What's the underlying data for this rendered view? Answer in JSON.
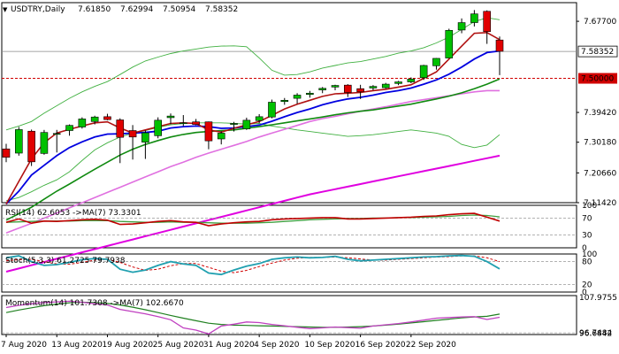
{
  "header": {
    "symbol_caret": "▼",
    "title": "USDTRY,Daily",
    "open": "7.61850",
    "high": "7.62994",
    "low": "7.50954",
    "close": "7.58352"
  },
  "chart_data": {
    "type": "candlestick",
    "x_tick_labels": [
      "7 Aug 2020",
      "13 Aug 2020",
      "19 Aug 2020",
      "25 Aug 2020",
      "31 Aug 2020",
      "4 Sep 2020",
      "10 Sep 2020",
      "16 Sep 2020",
      "22 Sep 2020"
    ],
    "price_panel": {
      "ylim": [
        7.1142,
        7.7349
      ],
      "y_tick_labels": [
        "7.67700",
        "7.58352",
        "7.50000",
        "7.39420",
        "7.30180",
        "7.20660",
        "7.11420"
      ],
      "current_price": 7.58352,
      "level_line": 7.5,
      "candles": [
        {
          "o": 7.281,
          "h": 7.297,
          "l": 7.24,
          "c": 7.255
        },
        {
          "o": 7.268,
          "h": 7.349,
          "l": 7.26,
          "c": 7.341
        },
        {
          "o": 7.336,
          "h": 7.341,
          "l": 7.228,
          "c": 7.241
        },
        {
          "o": 7.267,
          "h": 7.34,
          "l": 7.263,
          "c": 7.332
        },
        {
          "o": 7.327,
          "h": 7.34,
          "l": 7.27,
          "c": 7.329
        },
        {
          "o": 7.338,
          "h": 7.357,
          "l": 7.322,
          "c": 7.354
        },
        {
          "o": 7.349,
          "h": 7.379,
          "l": 7.344,
          "c": 7.374
        },
        {
          "o": 7.366,
          "h": 7.384,
          "l": 7.357,
          "c": 7.38
        },
        {
          "o": 7.381,
          "h": 7.39,
          "l": 7.37,
          "c": 7.372
        },
        {
          "o": 7.371,
          "h": 7.376,
          "l": 7.237,
          "c": 7.317
        },
        {
          "o": 7.338,
          "h": 7.355,
          "l": 7.248,
          "c": 7.318
        },
        {
          "o": 7.302,
          "h": 7.338,
          "l": 7.25,
          "c": 7.331
        },
        {
          "o": 7.322,
          "h": 7.379,
          "l": 7.314,
          "c": 7.37
        },
        {
          "o": 7.378,
          "h": 7.391,
          "l": 7.358,
          "c": 7.383
        },
        {
          "o": 7.36,
          "h": 7.386,
          "l": 7.352,
          "c": 7.362
        },
        {
          "o": 7.365,
          "h": 7.374,
          "l": 7.355,
          "c": 7.357
        },
        {
          "o": 7.365,
          "h": 7.366,
          "l": 7.28,
          "c": 7.306
        },
        {
          "o": 7.312,
          "h": 7.336,
          "l": 7.295,
          "c": 7.33
        },
        {
          "o": 7.357,
          "h": 7.365,
          "l": 7.335,
          "c": 7.36
        },
        {
          "o": 7.343,
          "h": 7.378,
          "l": 7.34,
          "c": 7.37
        },
        {
          "o": 7.369,
          "h": 7.389,
          "l": 7.361,
          "c": 7.381
        },
        {
          "o": 7.38,
          "h": 7.434,
          "l": 7.376,
          "c": 7.426
        },
        {
          "o": 7.428,
          "h": 7.439,
          "l": 7.418,
          "c": 7.432
        },
        {
          "o": 7.438,
          "h": 7.454,
          "l": 7.421,
          "c": 7.448
        },
        {
          "o": 7.45,
          "h": 7.461,
          "l": 7.44,
          "c": 7.454
        },
        {
          "o": 7.464,
          "h": 7.473,
          "l": 7.454,
          "c": 7.469
        },
        {
          "o": 7.473,
          "h": 7.48,
          "l": 7.463,
          "c": 7.478
        },
        {
          "o": 7.479,
          "h": 7.482,
          "l": 7.442,
          "c": 7.456
        },
        {
          "o": 7.468,
          "h": 7.48,
          "l": 7.436,
          "c": 7.458
        },
        {
          "o": 7.47,
          "h": 7.479,
          "l": 7.463,
          "c": 7.475
        },
        {
          "o": 7.471,
          "h": 7.486,
          "l": 7.468,
          "c": 7.482
        },
        {
          "o": 7.484,
          "h": 7.492,
          "l": 7.479,
          "c": 7.489
        },
        {
          "o": 7.489,
          "h": 7.503,
          "l": 7.485,
          "c": 7.498
        },
        {
          "o": 7.502,
          "h": 7.542,
          "l": 7.495,
          "c": 7.54
        },
        {
          "o": 7.539,
          "h": 7.563,
          "l": 7.527,
          "c": 7.562
        },
        {
          "o": 7.563,
          "h": 7.654,
          "l": 7.562,
          "c": 7.649
        },
        {
          "o": 7.65,
          "h": 7.686,
          "l": 7.64,
          "c": 7.673
        },
        {
          "o": 7.673,
          "h": 7.712,
          "l": 7.661,
          "c": 7.7
        },
        {
          "o": 7.708,
          "h": 7.711,
          "l": 7.607,
          "c": 7.645
        },
        {
          "o": 7.619,
          "h": 7.63,
          "l": 7.51,
          "c": 7.584
        }
      ],
      "lines": {
        "bb_upper": [
          7.34,
          7.352,
          7.366,
          7.392,
          7.415,
          7.438,
          7.458,
          7.475,
          7.49,
          7.512,
          7.535,
          7.554,
          7.566,
          7.577,
          7.585,
          7.591,
          7.597,
          7.6,
          7.601,
          7.598,
          7.563,
          7.525,
          7.51,
          7.512,
          7.52,
          7.532,
          7.54,
          7.548,
          7.552,
          7.56,
          7.568,
          7.578,
          7.585,
          7.595,
          7.61,
          7.628,
          7.652,
          7.676,
          7.688,
          7.682
        ],
        "bb_lower": [
          7.12,
          7.13,
          7.148,
          7.168,
          7.185,
          7.21,
          7.245,
          7.278,
          7.3,
          7.318,
          7.33,
          7.338,
          7.348,
          7.356,
          7.36,
          7.362,
          7.362,
          7.362,
          7.36,
          7.358,
          7.36,
          7.352,
          7.346,
          7.34,
          7.335,
          7.33,
          7.325,
          7.32,
          7.322,
          7.325,
          7.33,
          7.335,
          7.34,
          7.335,
          7.33,
          7.32,
          7.295,
          7.285,
          7.293,
          7.325
        ],
        "ema_fast_red": [
          7.11,
          7.18,
          7.25,
          7.3,
          7.33,
          7.342,
          7.352,
          7.362,
          7.365,
          7.346,
          7.33,
          7.34,
          7.35,
          7.36,
          7.362,
          7.36,
          7.34,
          7.333,
          7.345,
          7.356,
          7.366,
          7.385,
          7.405,
          7.42,
          7.432,
          7.444,
          7.452,
          7.454,
          7.456,
          7.462,
          7.466,
          7.473,
          7.48,
          7.5,
          7.52,
          7.56,
          7.6,
          7.64,
          7.642,
          7.62
        ],
        "ema_mid_blue": [
          7.11,
          7.15,
          7.2,
          7.23,
          7.26,
          7.285,
          7.303,
          7.318,
          7.327,
          7.328,
          7.33,
          7.332,
          7.336,
          7.346,
          7.35,
          7.352,
          7.35,
          7.345,
          7.346,
          7.35,
          7.355,
          7.367,
          7.381,
          7.394,
          7.405,
          7.418,
          7.428,
          7.436,
          7.441,
          7.448,
          7.456,
          7.462,
          7.47,
          7.482,
          7.495,
          7.513,
          7.535,
          7.56,
          7.58,
          7.585
        ],
        "ma_green": [
          7.06,
          7.08,
          7.1,
          7.125,
          7.15,
          7.172,
          7.195,
          7.218,
          7.24,
          7.262,
          7.28,
          7.295,
          7.307,
          7.318,
          7.326,
          7.332,
          7.335,
          7.338,
          7.34,
          7.345,
          7.35,
          7.356,
          7.362,
          7.368,
          7.374,
          7.38,
          7.387,
          7.393,
          7.398,
          7.402,
          7.408,
          7.414,
          7.42,
          7.428,
          7.436,
          7.445,
          7.455,
          7.468,
          7.482,
          7.498
        ],
        "ma_violet": [
          7.02,
          7.035,
          7.05,
          7.066,
          7.082,
          7.098,
          7.114,
          7.13,
          7.146,
          7.162,
          7.178,
          7.194,
          7.21,
          7.226,
          7.24,
          7.255,
          7.268,
          7.28,
          7.292,
          7.304,
          7.318,
          7.33,
          7.342,
          7.354,
          7.366,
          7.375,
          7.382,
          7.39,
          7.398,
          7.405,
          7.412,
          7.42,
          7.428,
          7.434,
          7.44,
          7.446,
          7.452,
          7.458,
          7.462,
          7.462
        ],
        "ma_magenta": [
          6.9,
          6.91,
          6.92,
          6.93,
          6.94,
          6.95,
          6.96,
          6.97,
          6.98,
          6.99,
          7.0,
          7.01,
          7.02,
          7.03,
          7.04,
          7.05,
          7.06,
          7.07,
          7.08,
          7.09,
          7.1,
          7.11,
          7.12,
          7.13,
          7.14,
          7.148,
          7.156,
          7.164,
          7.172,
          7.18,
          7.188,
          7.196,
          7.204,
          7.212,
          7.22,
          7.228,
          7.236,
          7.244,
          7.252,
          7.26
        ]
      }
    },
    "rsi_panel": {
      "label": "RSI(14) 62.6053  ->MA(7) 73.3301",
      "ylim": [
        0,
        100
      ],
      "y_tick_labels": [
        "100",
        "70",
        "30",
        "0"
      ],
      "rsi": [
        60,
        68,
        58,
        63,
        62,
        64,
        66,
        67,
        65,
        55,
        56,
        59,
        62,
        64,
        61,
        60,
        52,
        56,
        59,
        61,
        62,
        66,
        68,
        69,
        70,
        71,
        71,
        68,
        68,
        69,
        70,
        71,
        72,
        74,
        75,
        78,
        80,
        81,
        72,
        63
      ],
      "rsi_ma": [
        60,
        61,
        62,
        63,
        63,
        63,
        64,
        64,
        64,
        62,
        61,
        60,
        60,
        61,
        60,
        60,
        59,
        58,
        58,
        58,
        59,
        60,
        62,
        64,
        66,
        67,
        68,
        69,
        69,
        70,
        70,
        71,
        71,
        72,
        73,
        74,
        76,
        77,
        76,
        73
      ]
    },
    "stoch_panel": {
      "label": "Stoch(5,3,3) 61.2725 79.7938",
      "ylim": [
        0,
        100
      ],
      "y_tick_labels": [
        "100",
        "80",
        "20",
        "0"
      ],
      "k": [
        90,
        95,
        80,
        70,
        72,
        78,
        85,
        88,
        86,
        60,
        52,
        58,
        70,
        80,
        74,
        70,
        50,
        46,
        58,
        68,
        75,
        86,
        90,
        92,
        90,
        91,
        94,
        86,
        82,
        84,
        86,
        88,
        90,
        92,
        93,
        95,
        96,
        94,
        80,
        61
      ],
      "d": [
        82,
        85,
        86,
        80,
        74,
        73,
        78,
        84,
        86,
        78,
        66,
        57,
        60,
        69,
        75,
        75,
        65,
        55,
        51,
        57,
        67,
        76,
        84,
        89,
        91,
        91,
        92,
        90,
        87,
        84,
        84,
        86,
        88,
        90,
        92,
        93,
        95,
        95,
        90,
        80
      ]
    },
    "momentum_panel": {
      "label": "Momentum(14) 101.7308  ->MA(7) 102.6670",
      "ylim": [
        96.2,
        108.6
      ],
      "y_tick_labels": [
        "107.9755",
        "96.7484",
        "96.6842"
      ],
      "momentum": [
        104.8,
        105.5,
        106.0,
        106.4,
        106.6,
        106.8,
        106.5,
        106.0,
        105.6,
        104.2,
        103.5,
        102.8,
        101.9,
        100.9,
        98.3,
        97.6,
        96.4,
        98.9,
        99.5,
        100.2,
        100.0,
        99.4,
        99.0,
        98.5,
        98.1,
        98.3,
        98.6,
        98.4,
        98.2,
        98.9,
        99.3,
        99.7,
        100.2,
        100.8,
        101.4,
        101.6,
        101.8,
        101.9,
        101.0,
        101.7
      ],
      "ma": [
        103.2,
        104.0,
        104.7,
        105.4,
        105.9,
        106.3,
        106.5,
        106.4,
        106.1,
        105.6,
        104.9,
        104.1,
        103.2,
        102.3,
        101.4,
        100.6,
        99.8,
        99.4,
        99.2,
        99.1,
        99.0,
        98.9,
        98.8,
        98.7,
        98.6,
        98.5,
        98.5,
        98.6,
        98.7,
        98.9,
        99.2,
        99.5,
        99.9,
        100.3,
        100.7,
        101.1,
        101.5,
        101.8,
        102.0,
        102.7
      ]
    },
    "colors": {
      "bull": "#00c000",
      "bear": "#e00000",
      "bb": "#40b040",
      "ema_fast": "#b01010",
      "ema_mid": "#0000e0",
      "ma_green": "#108a10",
      "ma_violet": "#e070e0",
      "ma_magenta": "#e000e0",
      "level": "#d00000",
      "current": "#888888",
      "grid_border": "#000000"
    }
  }
}
